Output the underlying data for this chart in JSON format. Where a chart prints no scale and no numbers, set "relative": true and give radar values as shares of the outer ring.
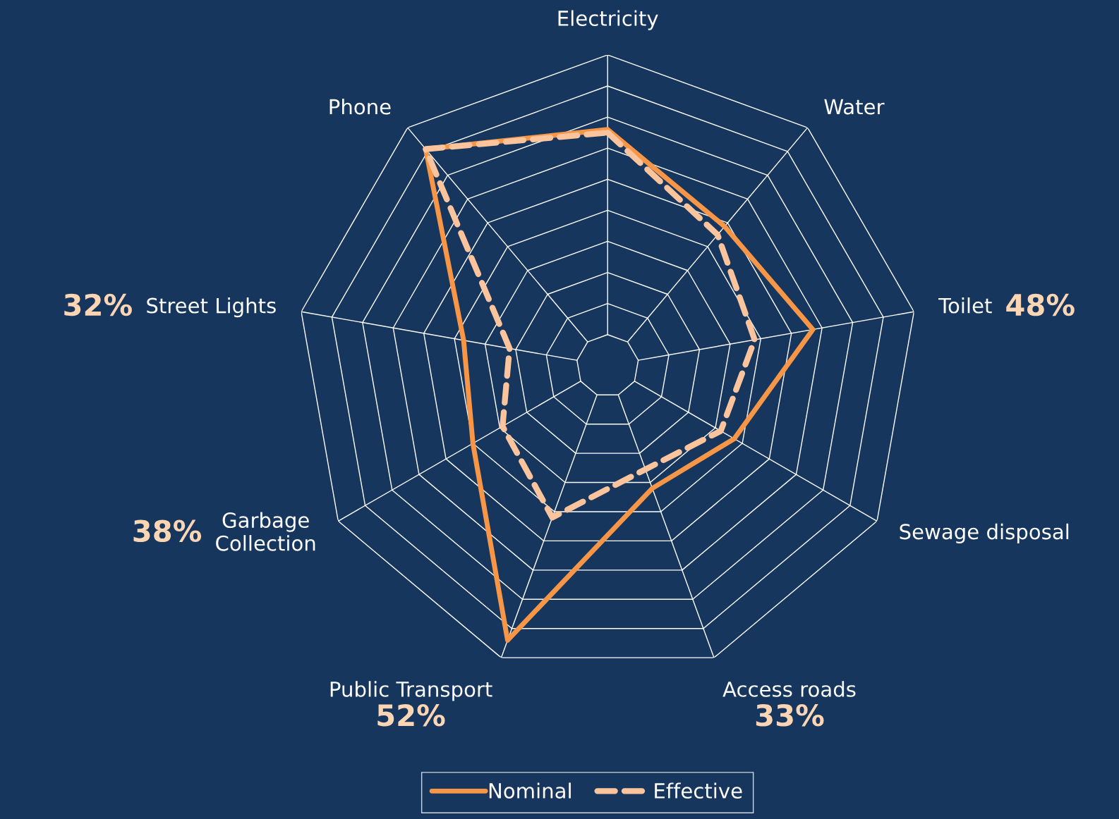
{
  "chart_data": {
    "type": "radar",
    "relative": true,
    "grid": true,
    "legend": "bottom",
    "categories": [
      "Electricity",
      "Water",
      "Toilet",
      "Sewage disposal",
      "Access roads",
      "Public Transport",
      "Garbage\nCollection",
      "Street Lights",
      "Phone"
    ],
    "series": [
      {
        "name": "Nominal",
        "color": "#f79646",
        "line_style": "solid",
        "values": [
          0.76,
          0.585,
          0.67,
          0.47,
          0.42,
          0.94,
          0.5,
          0.47,
          0.91
        ]
      },
      {
        "name": "Effective",
        "color": "#fbc49c",
        "line_style": "dashed",
        "values": [
          0.75,
          0.55,
          0.48,
          0.42,
          0.355,
          0.52,
          0.39,
          0.32,
          0.91
        ]
      }
    ],
    "annotations": [
      {
        "text": "48%",
        "x": "Toilet"
      },
      {
        "text": "33%",
        "x": "Access roads"
      },
      {
        "text": "52%",
        "x": "Public Transport"
      },
      {
        "text": "38%",
        "x": "Garbage\nCollection"
      },
      {
        "text": "32%",
        "x": "Street Lights"
      }
    ]
  }
}
